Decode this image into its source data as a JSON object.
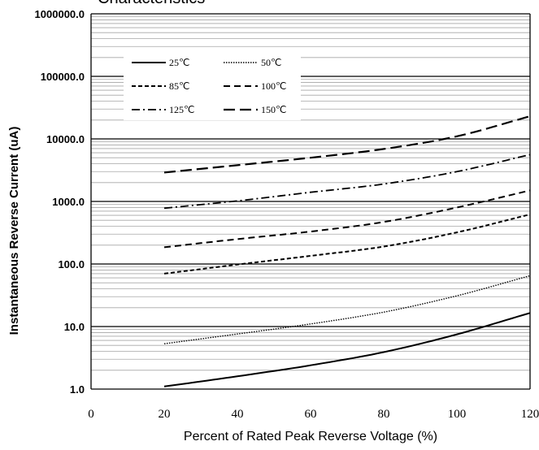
{
  "chart_data": {
    "type": "line",
    "title": "Characteristics",
    "xlabel": "Percent of  Rated Peak Reverse Voltage (%)",
    "ylabel": "Instantaneous Reverse Current (uA)",
    "xlim": [
      0,
      120
    ],
    "ylim": [
      1,
      1000000
    ],
    "yscale": "log",
    "grid": true,
    "legend_position": "top-left",
    "x_ticks": [
      "0",
      "20",
      "40",
      "60",
      "80",
      "100",
      "120"
    ],
    "y_ticks": [
      "1.0",
      "10.0",
      "100.0",
      "1000.0",
      "10000.0",
      "100000.0",
      "1000000.0"
    ],
    "x": [
      20,
      40,
      60,
      80,
      100,
      120
    ],
    "series": [
      {
        "name": "25℃",
        "values": [
          1.1,
          1.6,
          2.4,
          3.9,
          7.5,
          16.5
        ],
        "style": "solid"
      },
      {
        "name": "50℃",
        "values": [
          5.3,
          7.6,
          11,
          17,
          31,
          65
        ],
        "style": "dotted"
      },
      {
        "name": "85℃",
        "values": [
          70,
          98,
          135,
          190,
          320,
          620
        ],
        "style": "short-dash"
      },
      {
        "name": "100℃",
        "values": [
          185,
          250,
          330,
          470,
          800,
          1500
        ],
        "style": "dash"
      },
      {
        "name": "125℃",
        "values": [
          780,
          1020,
          1400,
          1900,
          3000,
          5600
        ],
        "style": "dash-dot"
      },
      {
        "name": "150℃",
        "values": [
          2900,
          3800,
          5000,
          6900,
          11000,
          23000
        ],
        "style": "long-dash"
      }
    ]
  }
}
